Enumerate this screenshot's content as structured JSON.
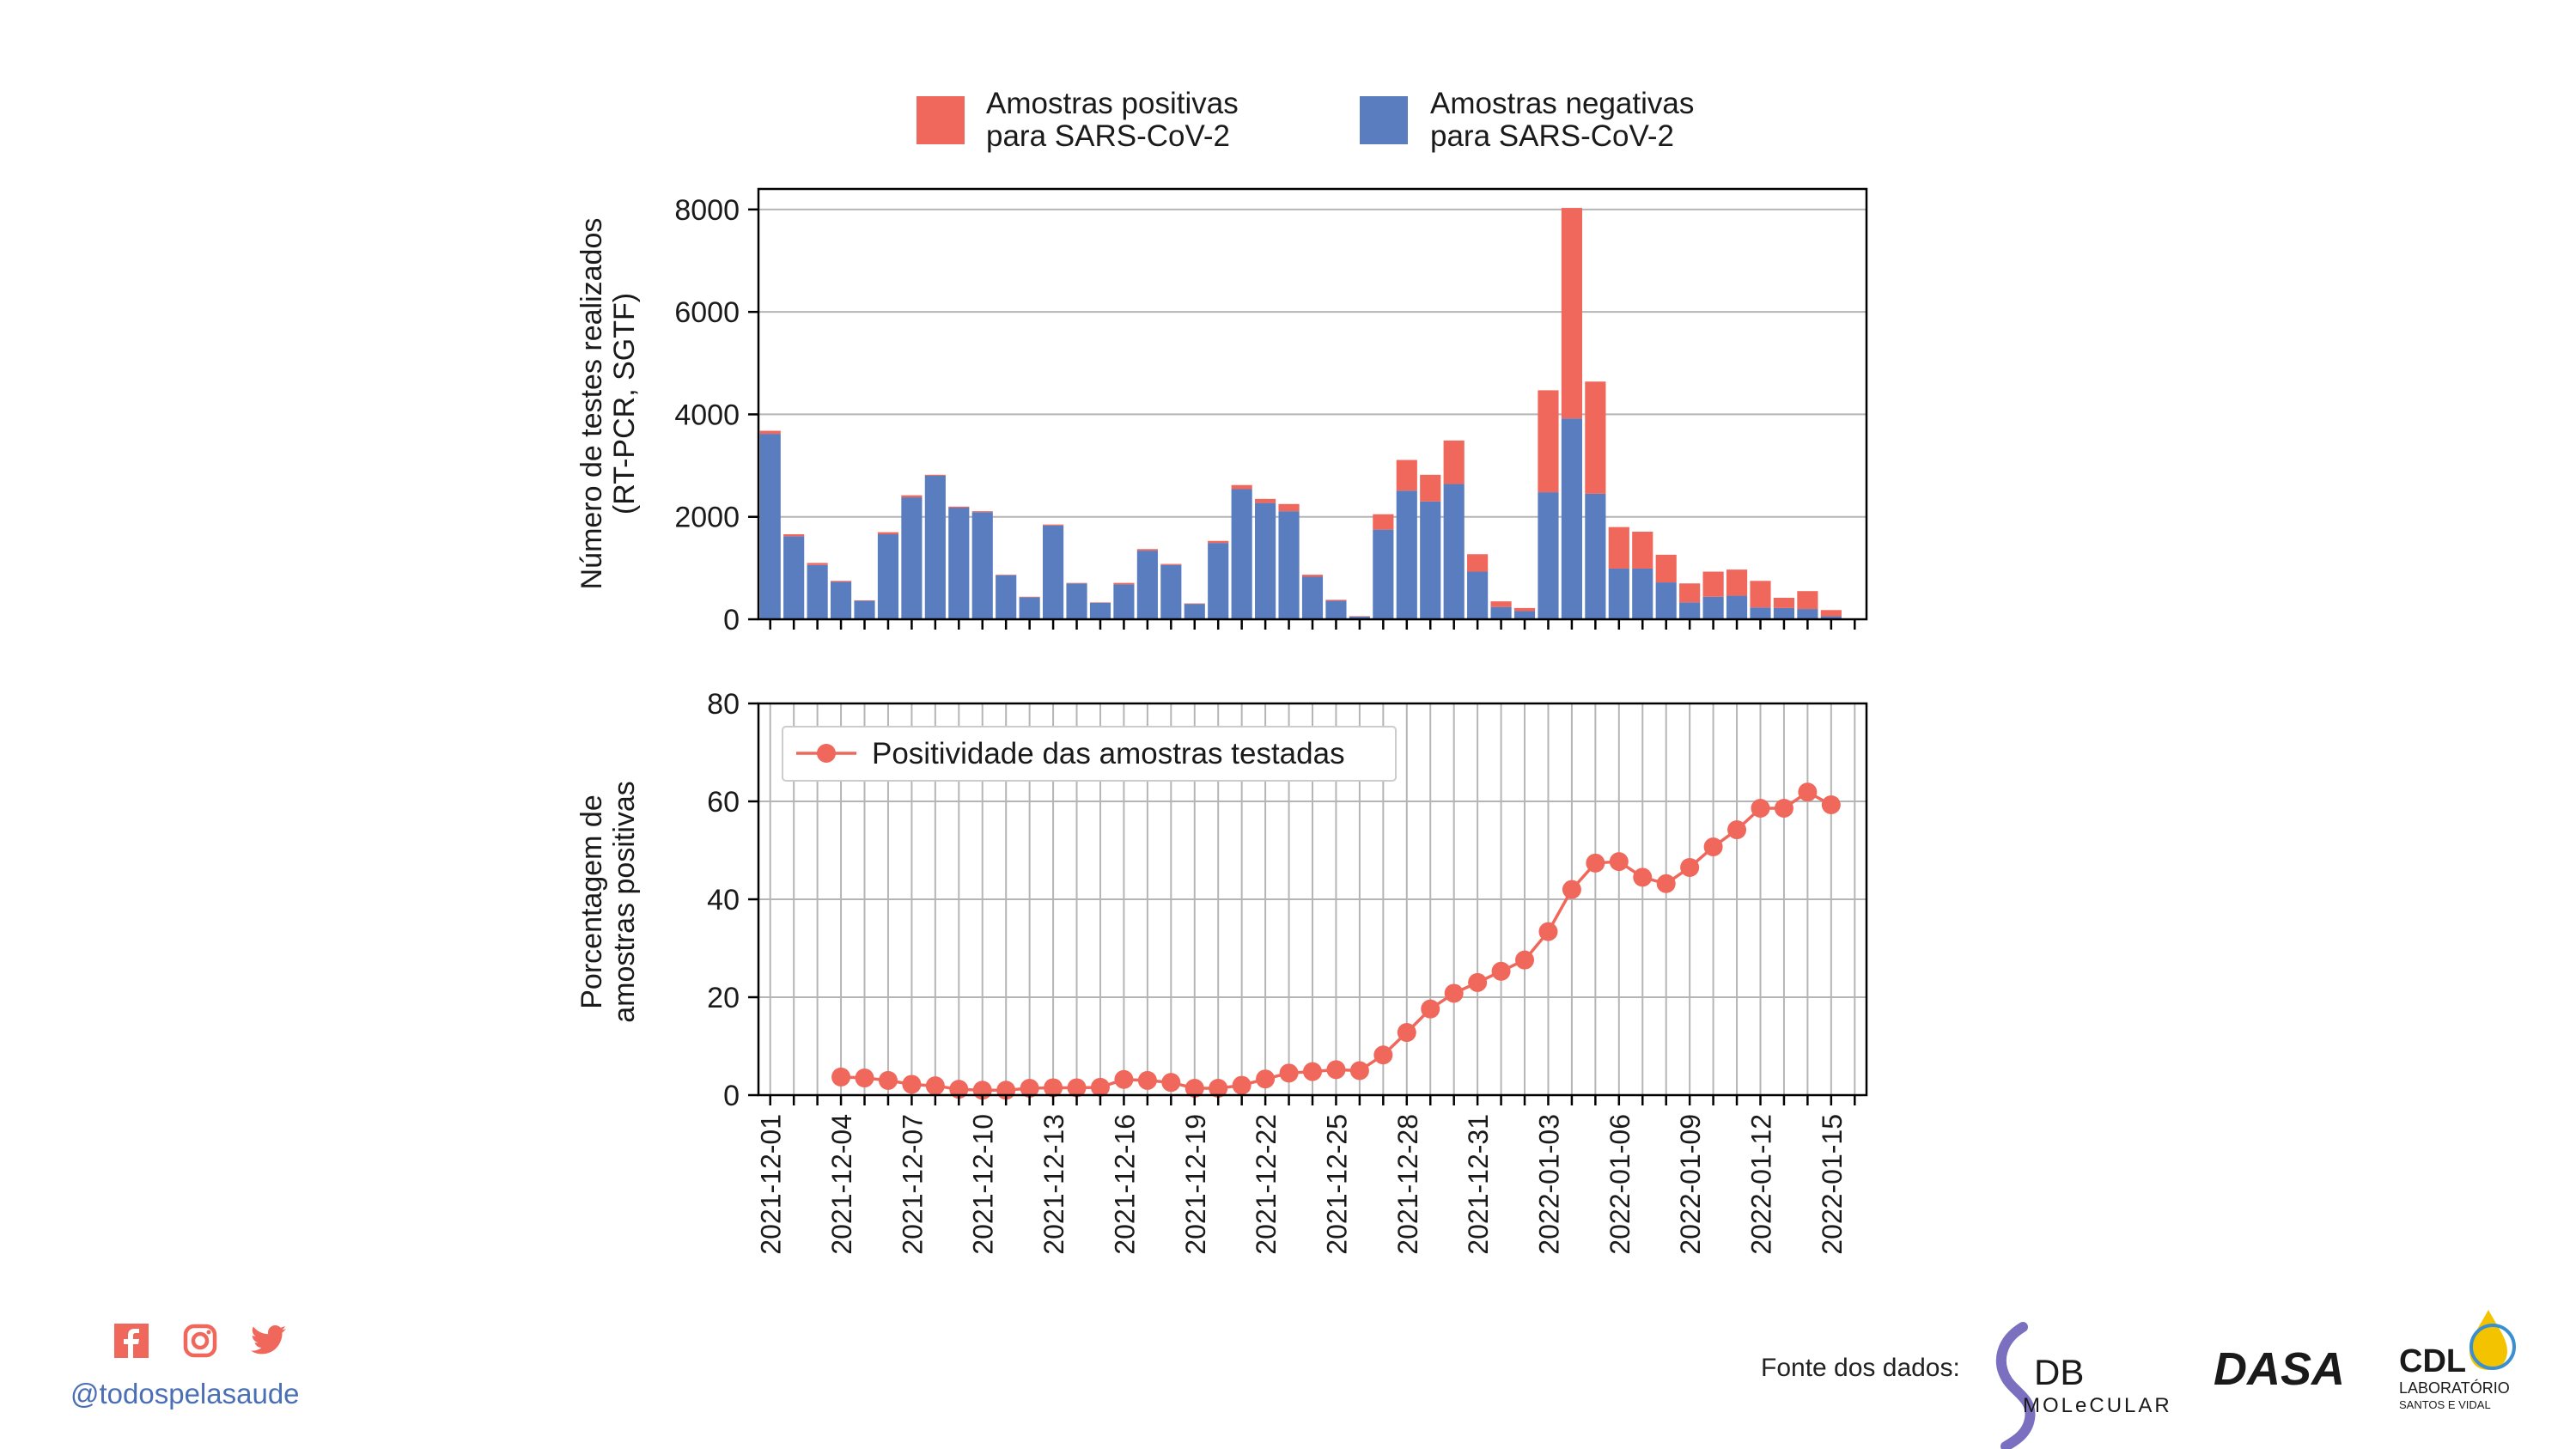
{
  "colors": {
    "positive": "#f0675c",
    "negative": "#5a7dc0",
    "line": "#f0675c",
    "accent_blue": "#4a6fb4"
  },
  "legend_top": {
    "positive": [
      "Amostras positivas",
      "para SARS-CoV-2"
    ],
    "negative": [
      "Amostras negativas",
      "para SARS-CoV-2"
    ]
  },
  "footer": {
    "handle": "@todospelasaude",
    "source_label": "Fonte dos dados:",
    "social": [
      "facebook-icon",
      "instagram-icon",
      "twitter-icon"
    ],
    "logos": {
      "db": {
        "main": "DB",
        "sub": "MOLeCULAR"
      },
      "dasa": {
        "main": "DASA"
      },
      "cdl": {
        "main": "CDL",
        "sub1": "LABORATÓRIO",
        "sub2": "SANTOS E VIDAL"
      }
    }
  },
  "chart_data": [
    {
      "type": "bar",
      "stacked": true,
      "ylabel": [
        "Número de testes realizados",
        "(RT-PCR, SGTF)"
      ],
      "ylim": [
        0,
        8400
      ],
      "yticks": [
        0,
        2000,
        4000,
        6000,
        8000
      ],
      "grid": "y",
      "categories": [
        "2021-12-01",
        "2021-12-02",
        "2021-12-03",
        "2021-12-04",
        "2021-12-05",
        "2021-12-06",
        "2021-12-07",
        "2021-12-08",
        "2021-12-09",
        "2021-12-10",
        "2021-12-11",
        "2021-12-12",
        "2021-12-13",
        "2021-12-14",
        "2021-12-15",
        "2021-12-16",
        "2021-12-17",
        "2021-12-18",
        "2021-12-19",
        "2021-12-20",
        "2021-12-21",
        "2021-12-22",
        "2021-12-23",
        "2021-12-24",
        "2021-12-25",
        "2021-12-26",
        "2021-12-27",
        "2021-12-28",
        "2021-12-29",
        "2021-12-30",
        "2021-12-31",
        "2022-01-01",
        "2022-01-02",
        "2022-01-03",
        "2022-01-04",
        "2022-01-05",
        "2022-01-06",
        "2022-01-07",
        "2022-01-08",
        "2022-01-09",
        "2022-01-10",
        "2022-01-11",
        "2022-01-12",
        "2022-01-13",
        "2022-01-14",
        "2022-01-15",
        "2022-01-16"
      ],
      "series": [
        {
          "name": "Amostras negativas para SARS-CoV-2",
          "values": [
            3620,
            1620,
            1060,
            730,
            360,
            1660,
            2380,
            2800,
            2180,
            2090,
            860,
            430,
            1830,
            700,
            320,
            680,
            1340,
            1060,
            300,
            1490,
            2540,
            2270,
            2110,
            830,
            360,
            50,
            1750,
            2510,
            2300,
            2640,
            930,
            240,
            160,
            2480,
            3920,
            2450,
            990,
            990,
            720,
            330,
            440,
            460,
            230,
            220,
            200,
            60,
            0
          ]
        },
        {
          "name": "Amostras positivas para SARS-CoV-2",
          "values": [
            60,
            40,
            40,
            20,
            10,
            40,
            40,
            20,
            20,
            20,
            10,
            10,
            20,
            10,
            10,
            30,
            30,
            20,
            10,
            40,
            80,
            80,
            140,
            40,
            20,
            10,
            300,
            600,
            520,
            850,
            340,
            110,
            60,
            1990,
            4110,
            2190,
            810,
            720,
            540,
            370,
            490,
            510,
            520,
            200,
            350,
            120,
            0
          ]
        }
      ]
    },
    {
      "type": "line",
      "ylabel": [
        "Porcentagem de",
        "amostras positivas"
      ],
      "ylim": [
        0,
        80
      ],
      "yticks": [
        0,
        20,
        40,
        60,
        80
      ],
      "grid": "both",
      "legend": {
        "position": "top-left",
        "entries": [
          "Positividade das amostras testadas"
        ]
      },
      "x": [
        "2021-12-04",
        "2021-12-05",
        "2021-12-06",
        "2021-12-07",
        "2021-12-08",
        "2021-12-09",
        "2021-12-10",
        "2021-12-11",
        "2021-12-12",
        "2021-12-13",
        "2021-12-14",
        "2021-12-15",
        "2021-12-16",
        "2021-12-17",
        "2021-12-18",
        "2021-12-19",
        "2021-12-20",
        "2021-12-21",
        "2021-12-22",
        "2021-12-23",
        "2021-12-24",
        "2021-12-25",
        "2021-12-26",
        "2021-12-27",
        "2021-12-28",
        "2021-12-29",
        "2021-12-30",
        "2021-12-31",
        "2022-01-01",
        "2022-01-02",
        "2022-01-03",
        "2022-01-04",
        "2022-01-05",
        "2022-01-06",
        "2022-01-07",
        "2022-01-08",
        "2022-01-09",
        "2022-01-10",
        "2022-01-11",
        "2022-01-12",
        "2022-01-13",
        "2022-01-14",
        "2022-01-15"
      ],
      "series": [
        {
          "name": "Positividade das amostras testadas",
          "values": [
            3.7,
            3.5,
            3.0,
            2.2,
            1.9,
            1.2,
            1.0,
            1.0,
            1.4,
            1.5,
            1.5,
            1.6,
            3.2,
            3.0,
            2.6,
            1.4,
            1.4,
            2.0,
            3.3,
            4.5,
            4.8,
            5.2,
            5.0,
            8.2,
            12.8,
            17.6,
            20.8,
            23.0,
            25.3,
            27.6,
            33.4,
            42.0,
            47.4,
            47.7,
            44.5,
            43.2,
            46.5,
            50.7,
            54.2,
            58.6,
            58.6,
            61.9,
            59.3
          ]
        }
      ],
      "xtick_labels": [
        "2021-12-01",
        "2021-12-04",
        "2021-12-07",
        "2021-12-10",
        "2021-12-13",
        "2021-12-16",
        "2021-12-19",
        "2021-12-22",
        "2021-12-25",
        "2021-12-28",
        "2021-12-31",
        "2022-01-03",
        "2022-01-06",
        "2022-01-09",
        "2022-01-12",
        "2022-01-15"
      ]
    }
  ]
}
